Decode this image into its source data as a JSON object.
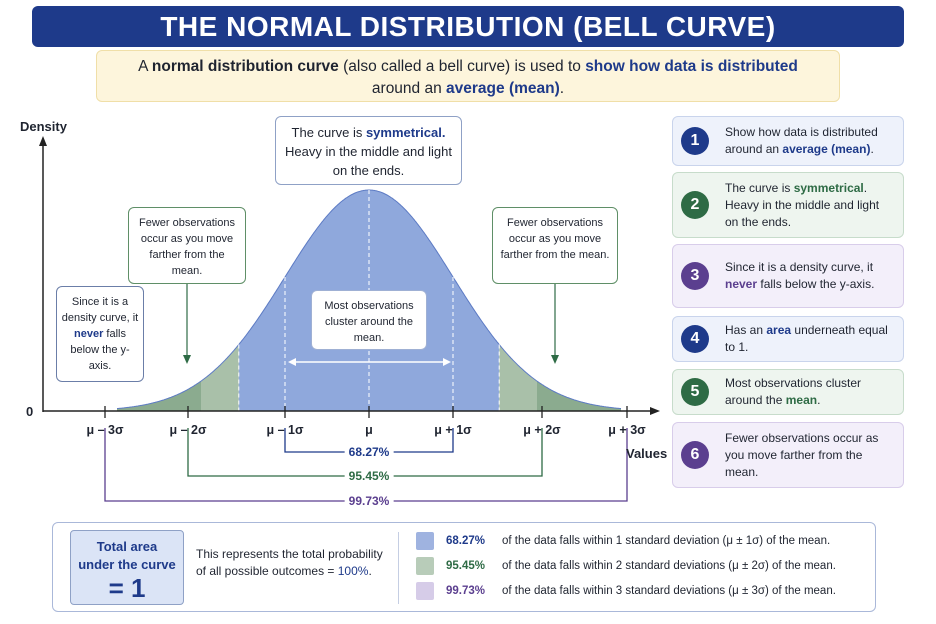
{
  "title": "THE NORMAL DISTRIBUTION (BELL CURVE)",
  "subtitle": {
    "p1": "A ",
    "b1": "normal distribution curve",
    "p2": " (also called a bell curve) is used to ",
    "h1": "show how data is distributed",
    "p3": "around an ",
    "h2": "average (mean)",
    "p4": "."
  },
  "axes": {
    "y_label": "Density",
    "x_label": "Values",
    "origin": "0"
  },
  "ticks": [
    "μ – 3σ",
    "μ – 2σ",
    "μ – 1σ",
    "μ",
    "μ + 1σ",
    "μ + 2σ",
    "μ + 3σ"
  ],
  "ranges": [
    "68.27%",
    "95.45%",
    "99.73%"
  ],
  "callouts": {
    "top": {
      "a": "The curve is ",
      "b": "symmetrical.",
      "c": "Heavy in the middle and light on the ends."
    },
    "left_far": {
      "a": "Since it is a density curve, it ",
      "b": "never",
      "c": " falls below the y-axis."
    },
    "left_fewer": "Fewer observations occur as you move farther from the mean.",
    "right_fewer": "Fewer observations occur as you move farther from the mean.",
    "center": "Most observations cluster around the mean."
  },
  "side_cards": [
    {
      "num": "1",
      "a": "Show how data is distributed around an ",
      "b": "average (mean)",
      "c": ".",
      "color": "#1e3a8a",
      "bg": "#eef2fb",
      "border": "#c9d4ec",
      "hl": "#1e3a8a"
    },
    {
      "num": "2",
      "a": "The curve is ",
      "b": "symmetrical",
      "c": ". Heavy in the middle and light on the ends.",
      "color": "#2e6b45",
      "bg": "#eef5ef",
      "border": "#c7dccb",
      "hl": "#2e6b45"
    },
    {
      "num": "3",
      "a": "Since it is a density curve, it ",
      "b": "never",
      "c": " falls below the y-axis.",
      "color": "#5b3f8f",
      "bg": "#f3effa",
      "border": "#d8cdea",
      "hl": "#5b3f8f"
    },
    {
      "num": "4",
      "a": "Has an ",
      "b": "area",
      "c": " underneath equal to 1.",
      "color": "#1e3a8a",
      "bg": "#eef2fb",
      "border": "#c9d4ec",
      "hl": "#1e3a8a"
    },
    {
      "num": "5",
      "a": "Most observations cluster around the ",
      "b": "mean",
      "c": ".",
      "color": "#2e6b45",
      "bg": "#eef5ef",
      "border": "#c7dccb",
      "hl": "#2e6b45"
    },
    {
      "num": "6",
      "a": "Fewer observations occur as you move farther from the mean.",
      "b": "",
      "c": "",
      "color": "#5b3f8f",
      "bg": "#f3effa",
      "border": "#d8cdea",
      "hl": "#5b3f8f"
    }
  ],
  "total": {
    "line1": "Total area",
    "line2": "under the curve",
    "value": "= 1",
    "desc1": "This represents the total probability",
    "desc2": "of all possible outcomes = ",
    "desc_pct": "100%",
    "desc_end": "."
  },
  "legend": [
    {
      "pct": "68.27%",
      "text": "of the data falls within 1 standard deviation (μ ± 1σ) of the mean.",
      "color": "#9fb3e0",
      "pct_color": "#1e3a8a"
    },
    {
      "pct": "95.45%",
      "text": "of the data falls within 2 standard deviations (μ ± 2σ) of the mean.",
      "color": "#b8ccb9",
      "pct_color": "#2e6b45"
    },
    {
      "pct": "99.73%",
      "text": "of the data falls within 3 standard deviations (μ ± 3σ) of the mean.",
      "color": "#d6cce8",
      "pct_color": "#5b3f8f"
    }
  ],
  "colors": {
    "inner": "#8fa8dc",
    "middle": "#a9c0a9",
    "outer": "#8bab8f",
    "navy": "#1e3a8a",
    "green": "#2e6b45",
    "purple": "#5b3f8f"
  }
}
